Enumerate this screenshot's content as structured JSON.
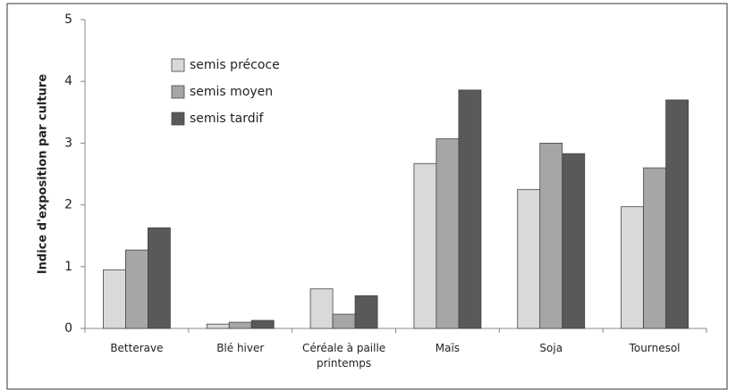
{
  "chart_data": {
    "type": "bar",
    "y_label": "Indice d'exposition par culture",
    "categories": [
      "Betterave",
      "Blé hiver",
      "Céréale à paille printemps",
      "Maïs",
      "Soja",
      "Tournesol"
    ],
    "series": [
      {
        "name": "semis précoce",
        "color": "#d9d9d9",
        "values": [
          0.95,
          0.07,
          0.64,
          2.67,
          2.25,
          1.97
        ]
      },
      {
        "name": "semis moyen",
        "color": "#a6a6a6",
        "values": [
          1.27,
          0.1,
          0.23,
          3.07,
          3.0,
          2.6
        ]
      },
      {
        "name": "semis tardif",
        "color": "#595959",
        "values": [
          1.63,
          0.13,
          0.53,
          3.86,
          2.83,
          3.7
        ]
      }
    ],
    "ylim": [
      0,
      5
    ],
    "yticks": [
      0,
      1,
      2,
      3,
      4,
      5
    ],
    "grid": false,
    "legend": "top-left"
  }
}
